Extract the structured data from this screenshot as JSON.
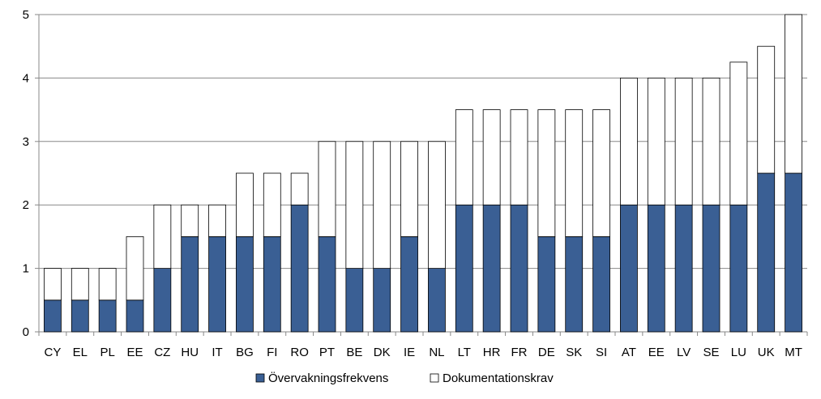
{
  "chart_data": {
    "type": "bar",
    "stacked": true,
    "categories": [
      "CY",
      "EL",
      "PL",
      "EE",
      "CZ",
      "HU",
      "IT",
      "BG",
      "FI",
      "RO",
      "PT",
      "BE",
      "DK",
      "IE",
      "NL",
      "LT",
      "HR",
      "FR",
      "DE",
      "SK",
      "SI",
      "AT",
      "EE",
      "LV",
      "SE",
      "LU",
      "UK",
      "MT"
    ],
    "series": [
      {
        "name": "Övervakningsfrekvens",
        "color": "#3a5f94",
        "values": [
          0.5,
          0.5,
          0.5,
          0.5,
          1,
          1.5,
          1.5,
          1.5,
          1.5,
          2,
          1.5,
          1,
          1,
          1.5,
          1,
          2,
          2,
          2,
          1.5,
          1.5,
          1.5,
          2,
          2,
          2,
          2,
          2,
          2.5,
          2.5
        ]
      },
      {
        "name": "Dokumentationskrav",
        "color": "#ffffff",
        "values": [
          0.5,
          0.5,
          0.5,
          1,
          1,
          0.5,
          0.5,
          1,
          1,
          0.5,
          1.5,
          2,
          2,
          1.5,
          2,
          1.5,
          1.5,
          1.5,
          2,
          2,
          2,
          2,
          2,
          2,
          2,
          2.25,
          2,
          2.5
        ]
      }
    ],
    "ylim": [
      0,
      5
    ],
    "yticks": [
      "0",
      "1",
      "2",
      "3",
      "4",
      "5"
    ],
    "grid": true,
    "legend_position": "bottom",
    "title": "",
    "xlabel": "",
    "ylabel": ""
  }
}
